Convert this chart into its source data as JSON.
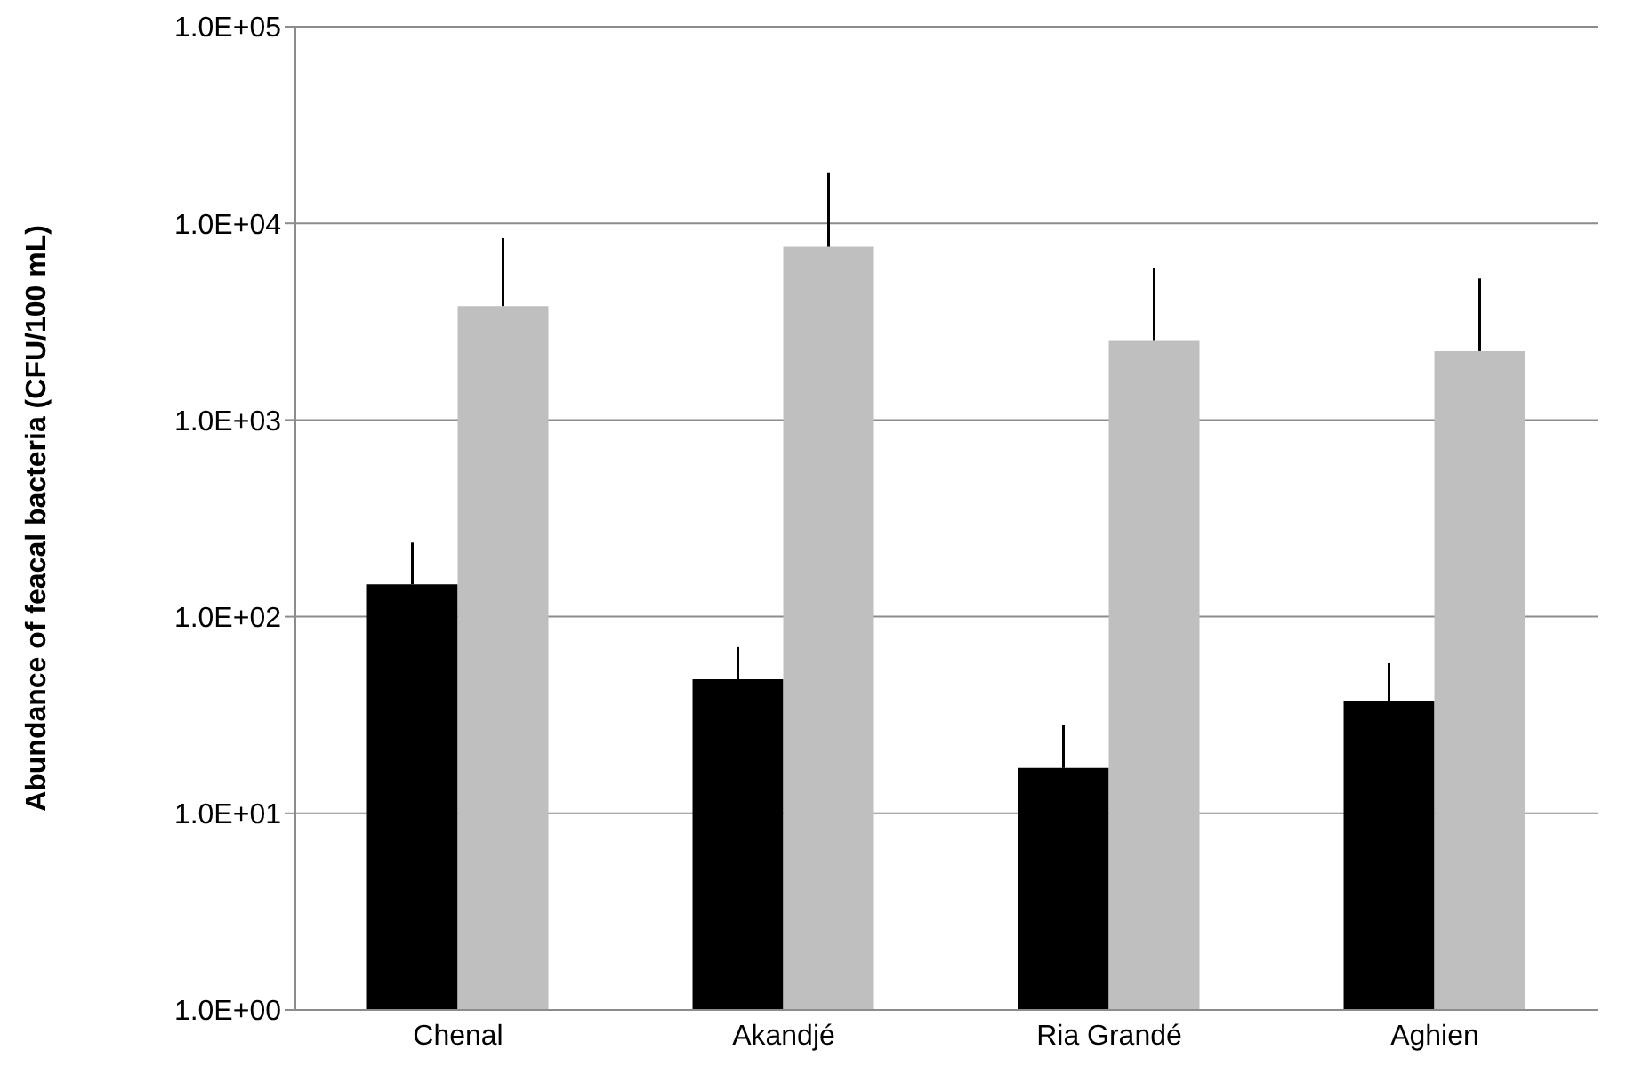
{
  "chart_data": {
    "type": "bar",
    "ylabel": "Abundance of feacal bacteria (CFU/100 mL)",
    "categories": [
      "Chenal",
      "Akandjé",
      "Ria Grandé",
      "Aghien"
    ],
    "series": [
      {
        "color": "#000000",
        "values": [
          146,
          48,
          17,
          37
        ],
        "errors": [
          [
            146,
            238
          ],
          [
            48,
            70
          ],
          [
            17,
            28
          ],
          [
            37,
            58
          ]
        ]
      },
      {
        "color": "#bfbfbf",
        "values": [
          3800,
          7600,
          2550,
          2240
        ],
        "errors": [
          [
            3800,
            8400
          ],
          [
            7600,
            18000
          ],
          [
            2550,
            5950
          ],
          [
            2240,
            5240
          ]
        ]
      }
    ],
    "log": true,
    "ylim": [
      1,
      100000
    ],
    "yticks": [
      {
        "value": 1,
        "label": "1.0E+00"
      },
      {
        "value": 10,
        "label": "1.0E+01"
      },
      {
        "value": 100,
        "label": "1.0E+02"
      },
      {
        "value": 1000,
        "label": "1.0E+03"
      },
      {
        "value": 10000,
        "label": "1.0E+04"
      },
      {
        "value": 100000,
        "label": "1.0E+05"
      }
    ],
    "grid": "y",
    "legend": false
  }
}
